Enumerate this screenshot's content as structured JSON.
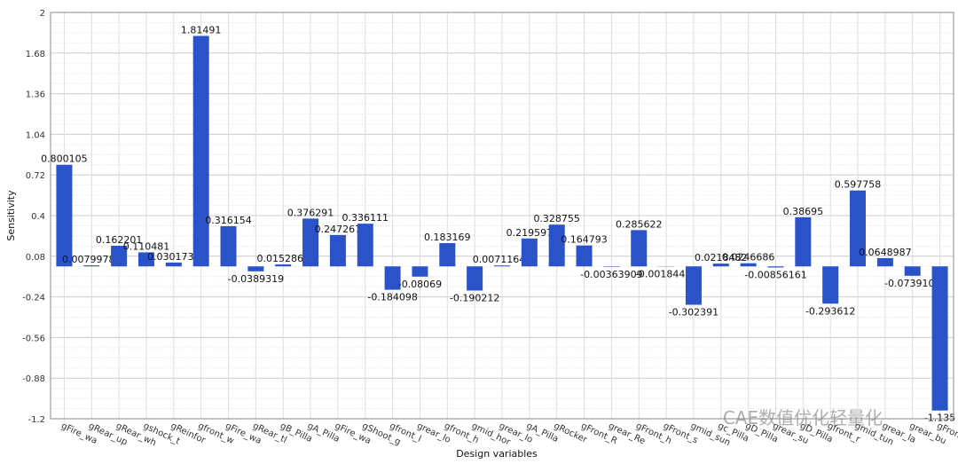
{
  "chart_data": {
    "type": "bar",
    "y_label": "Sensitivity",
    "x_label": "Design variables",
    "watermark": "CAE数值优化轻量化",
    "color": "#2a52c9",
    "grid": true,
    "categories": [
      "gFire_wa",
      "gRear_up",
      "gRear_wh",
      "gshock_t",
      "gReinfor",
      "gfront_w",
      "gFire_wa",
      "gRear_tl",
      "gB_Pilla",
      "gA_Pilla",
      "gFire_wa",
      "gShoot_g",
      "gfront_l",
      "grear_lo",
      "gfront_h",
      "gmid_hor",
      "grear_lo",
      "gA_Pilla",
      "gRocker",
      "gFront_R",
      "grear_Re",
      "gFront_h",
      "gFront_s",
      "gmid_sun",
      "gc_Pilla",
      "gD_Pilla",
      "grear_su",
      "gD_Pilla",
      "gfront_r",
      "gmid_tun",
      "grear_la",
      "grear_bu",
      "gFront_"
    ],
    "values": [
      0.800105,
      0.00799786,
      0.162201,
      0.110481,
      0.0301739,
      1.81491,
      0.316154,
      -0.0389319,
      0.0152861,
      0.376291,
      0.247267,
      0.336111,
      -0.184098,
      -0.08069,
      0.183169,
      -0.190212,
      0.00711648,
      0.219597,
      0.328755,
      0.164793,
      -0.00363909,
      0.285622,
      -0.00184472,
      -0.302391,
      0.0218482,
      0.0246686,
      -0.00856161,
      0.38695,
      -0.293612,
      0.597758,
      0.0648987,
      -0.0739108,
      -1.135
    ],
    "ylim": [
      -1.2,
      2
    ],
    "yticks": [
      -1.2,
      -0.88,
      -0.56,
      -0.24,
      0.08,
      0.4,
      0.72,
      1.04,
      1.36,
      1.68,
      2
    ]
  }
}
